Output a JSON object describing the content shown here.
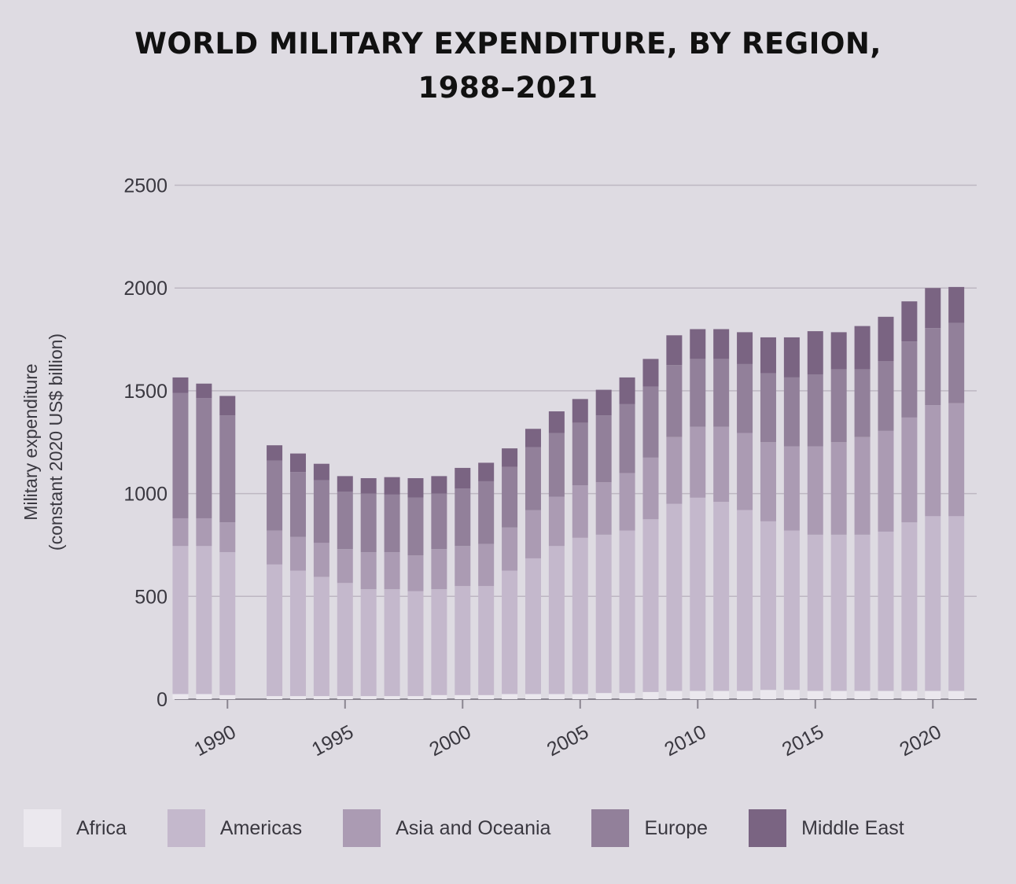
{
  "title": {
    "line1": "WORLD MILITARY EXPENDITURE, BY REGION,",
    "line2": "1988–2021"
  },
  "chart_data": {
    "type": "bar",
    "stacked": true,
    "ylabel_line1": "Military expenditure",
    "ylabel_line2": "(constant 2020 US$ billion)",
    "ylim": [
      0,
      2500
    ],
    "yticks": [
      0,
      500,
      1000,
      1500,
      2000,
      2500
    ],
    "xticks": [
      "1990",
      "1995",
      "2000",
      "2005",
      "2010",
      "2015",
      "2020"
    ],
    "grid": "horizontal",
    "legend_position": "bottom",
    "categories": [
      1988,
      1989,
      1990,
      1992,
      1993,
      1994,
      1995,
      1996,
      1997,
      1998,
      1999,
      2000,
      2001,
      2002,
      2003,
      2004,
      2005,
      2006,
      2007,
      2008,
      2009,
      2010,
      2011,
      2012,
      2013,
      2014,
      2015,
      2016,
      2017,
      2018,
      2019,
      2020,
      2021
    ],
    "series": [
      {
        "name": "Africa",
        "color": "#ebe8ee",
        "values": [
          25,
          25,
          20,
          15,
          15,
          15,
          15,
          15,
          15,
          15,
          20,
          20,
          20,
          25,
          25,
          25,
          25,
          30,
          30,
          35,
          40,
          40,
          40,
          40,
          45,
          45,
          40,
          40,
          40,
          40,
          40,
          40,
          40
        ]
      },
      {
        "name": "Americas",
        "color": "#c4b8cc",
        "values": [
          720,
          720,
          695,
          640,
          610,
          580,
          550,
          520,
          520,
          510,
          515,
          530,
          530,
          600,
          660,
          720,
          760,
          770,
          790,
          840,
          910,
          940,
          920,
          880,
          820,
          775,
          760,
          760,
          760,
          775,
          820,
          850,
          850
        ]
      },
      {
        "name": "Asia and Oceania",
        "color": "#ab9bb3",
        "values": [
          135,
          135,
          145,
          165,
          165,
          165,
          165,
          180,
          180,
          175,
          195,
          195,
          205,
          210,
          235,
          240,
          255,
          255,
          280,
          300,
          325,
          345,
          365,
          375,
          385,
          410,
          430,
          450,
          475,
          490,
          510,
          540,
          550
        ]
      },
      {
        "name": "Europe",
        "color": "#92809a",
        "values": [
          610,
          585,
          520,
          340,
          315,
          305,
          280,
          285,
          280,
          280,
          270,
          280,
          305,
          295,
          305,
          310,
          305,
          325,
          335,
          345,
          350,
          330,
          330,
          335,
          335,
          335,
          350,
          355,
          330,
          340,
          370,
          375,
          390
        ]
      },
      {
        "name": "Middle East",
        "color": "#7a6482",
        "values": [
          75,
          70,
          95,
          75,
          90,
          80,
          75,
          75,
          85,
          95,
          85,
          100,
          90,
          90,
          90,
          105,
          115,
          125,
          130,
          135,
          145,
          145,
          145,
          155,
          175,
          195,
          210,
          180,
          210,
          215,
          195,
          195,
          175
        ]
      }
    ]
  }
}
